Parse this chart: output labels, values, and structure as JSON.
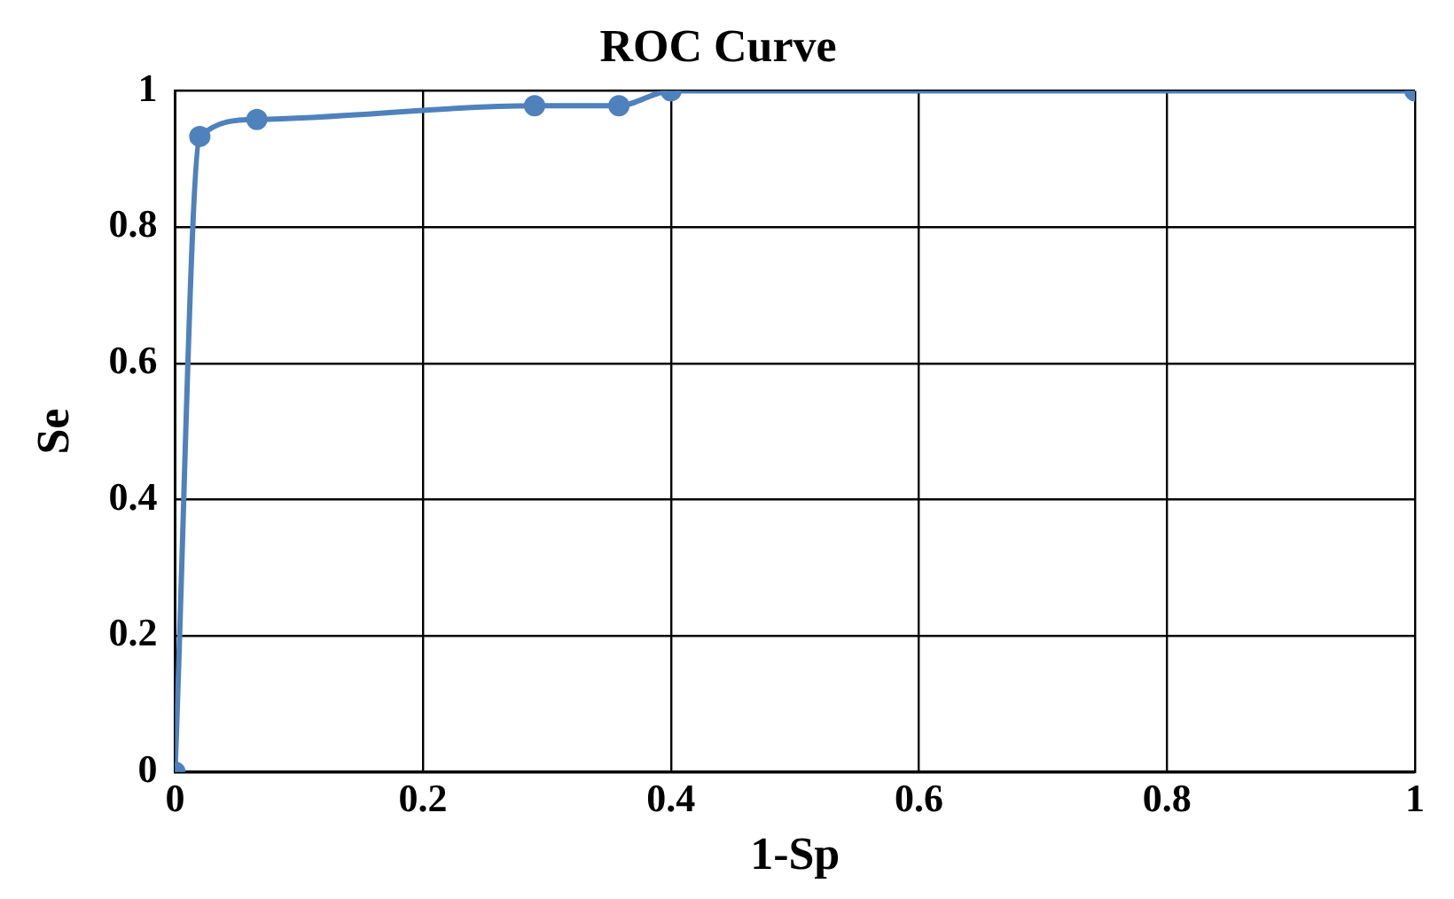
{
  "chart_data": {
    "type": "line",
    "title": "ROC Curve",
    "xlabel": "1-Sp",
    "ylabel": "Se",
    "x": [
      0,
      0.02,
      0.066,
      0.29,
      0.358,
      0.4,
      1
    ],
    "series": [
      {
        "color": "#4f81bd",
        "values": [
          0,
          0.933,
          0.958,
          0.978,
          0.978,
          1,
          1
        ]
      }
    ],
    "xlim": [
      0,
      1
    ],
    "xticks": [
      0,
      0.2,
      0.4,
      0.6,
      0.8,
      1
    ],
    "ylim": [
      0,
      1
    ],
    "yticks": [
      0,
      0.2,
      0.4,
      0.6,
      0.8,
      1
    ],
    "grid": true,
    "legend": false,
    "marker": "circle",
    "line_style": "solid"
  }
}
